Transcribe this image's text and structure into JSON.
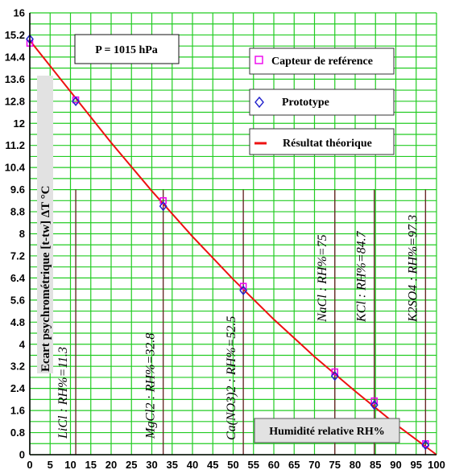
{
  "chart_data": {
    "type": "line",
    "xlabel": "Humidité relative RH%",
    "ylabel": "Ecart psychrométrique [t-tw] ΔT °C",
    "xlim": [
      0,
      100
    ],
    "ylim": [
      0,
      16
    ],
    "xticks": [
      "0",
      "5",
      "10",
      "15",
      "20",
      "25",
      "30",
      "35",
      "40",
      "45",
      "50",
      "55",
      "60",
      "65",
      "70",
      "75",
      "80",
      "85",
      "90",
      "95",
      "100"
    ],
    "yticks": [
      "0",
      "0.4",
      "0.8",
      "1.2",
      "1.6",
      "2",
      "2.4",
      "2.8",
      "3.2",
      "3.6",
      "4",
      "4.4",
      "4.8",
      "5.2",
      "5.6",
      "6",
      "6.4",
      "6.8",
      "7.2",
      "7.6",
      "8",
      "8.4",
      "8.8",
      "9.2",
      "9.6",
      "10",
      "10.4",
      "10.8",
      "11.2",
      "11.6",
      "12",
      "12.4",
      "12.8",
      "13.2",
      "13.6",
      "14",
      "14.4",
      "14.8",
      "15.2",
      "15.6",
      "16"
    ],
    "grid": true,
    "pressure_label": "P = 1015 hPa",
    "legend": [
      {
        "name": "Capteur de reférence",
        "marker": "square",
        "color": "#ee00ee"
      },
      {
        "name": "Prototype",
        "marker": "diamond",
        "color": "#2222cc"
      },
      {
        "name": "Résultat théorique",
        "marker": "line",
        "color": "#ee1111"
      }
    ],
    "series": [
      {
        "name": "Capteur de reférence",
        "x": [
          0,
          11.3,
          32.8,
          52.5,
          75,
          84.7,
          97.3
        ],
        "y": [
          14.9,
          12.85,
          9.2,
          6.1,
          3.0,
          1.95,
          0.4
        ]
      },
      {
        "name": "Prototype",
        "x": [
          0,
          11.3,
          32.8,
          52.5,
          75,
          84.7,
          97.3
        ],
        "y": [
          15.05,
          12.8,
          9.0,
          5.95,
          2.85,
          1.8,
          0.35
        ]
      },
      {
        "name": "Résultat théorique",
        "x": [
          0,
          10,
          20,
          30,
          40,
          50,
          60,
          70,
          80,
          90,
          100
        ],
        "y": [
          15.0,
          13.15,
          11.3,
          9.55,
          7.9,
          6.35,
          4.9,
          3.55,
          2.3,
          1.1,
          0.0
        ]
      }
    ],
    "salt_lines": [
      {
        "rh": 11.3,
        "label": "LiCl :  RH%=11.3"
      },
      {
        "rh": 32.8,
        "label": "MgCl2 :  RH%=32.8"
      },
      {
        "rh": 52.5,
        "label": "Ca(NO3)2 :  RH%=52.5"
      },
      {
        "rh": 75,
        "label": "NaCl :  RH%=75"
      },
      {
        "rh": 84.7,
        "label": "KCl :  RH%=84.7"
      },
      {
        "rh": 97.3,
        "label": "K2SO4 :  RH%=97.3"
      }
    ]
  },
  "colors": {
    "grid": "#22cc22",
    "curve": "#ee1111",
    "reference": "#ee00ee",
    "prototype": "#2222cc",
    "salt_line": "#6a2a2a"
  }
}
